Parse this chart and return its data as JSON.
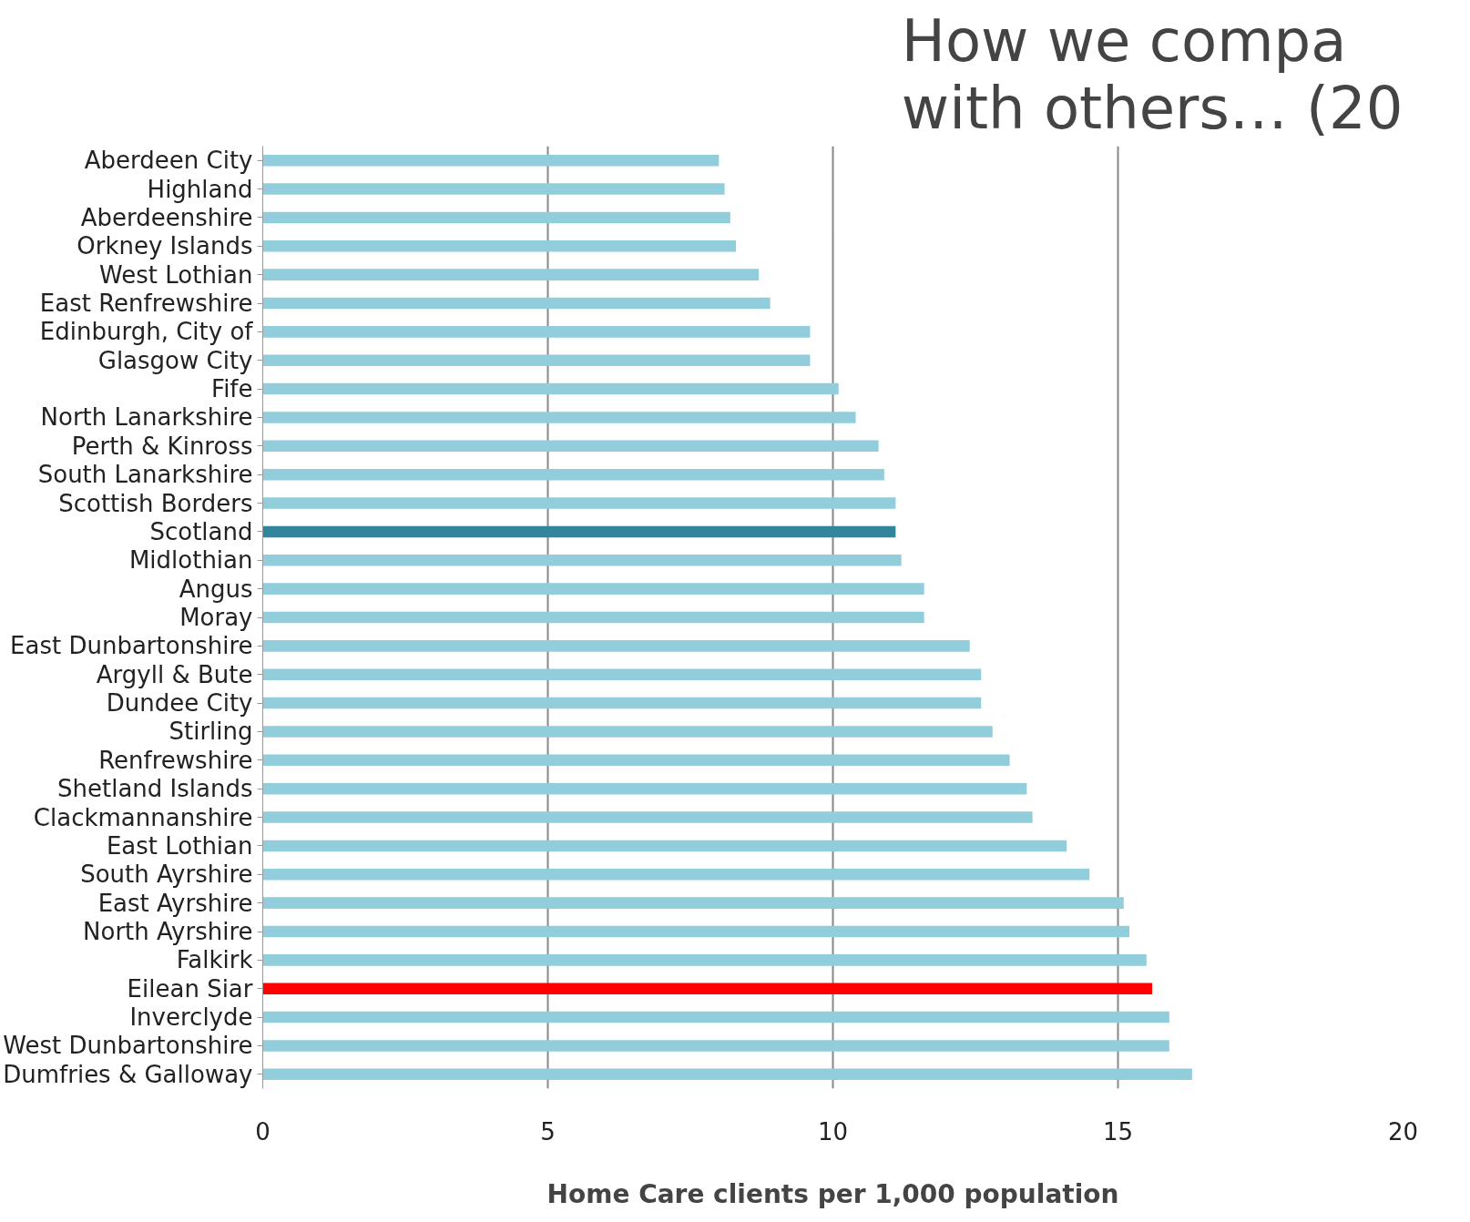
{
  "chart_data": {
    "type": "bar",
    "orientation": "horizontal",
    "title": "How we compa\nwith others… (20",
    "xlabel": "Home Care clients per 1,000 population",
    "categories": [
      "Aberdeen City",
      "Highland",
      "Aberdeenshire",
      "Orkney Islands",
      "West Lothian",
      "East Renfrewshire",
      "Edinburgh, City of",
      "Glasgow City",
      "Fife",
      "North Lanarkshire",
      "Perth & Kinross",
      "South Lanarkshire",
      "Scottish Borders",
      "Scotland",
      "Midlothian",
      "Angus",
      "Moray",
      "East Dunbartonshire",
      "Argyll & Bute",
      "Dundee City",
      "Stirling",
      "Renfrewshire",
      "Shetland Islands",
      "Clackmannanshire",
      "East Lothian",
      "South Ayrshire",
      "East Ayrshire",
      "North Ayrshire",
      "Falkirk",
      "Eilean Siar",
      "Inverclyde",
      "West Dunbartonshire",
      "Dumfries & Galloway"
    ],
    "values": [
      8.0,
      8.1,
      8.2,
      8.3,
      8.7,
      8.9,
      9.6,
      9.6,
      10.1,
      10.4,
      10.8,
      10.9,
      11.1,
      11.1,
      11.2,
      11.6,
      11.6,
      12.4,
      12.6,
      12.6,
      12.8,
      13.1,
      13.4,
      13.5,
      14.1,
      14.5,
      15.1,
      15.2,
      15.5,
      15.6,
      15.9,
      15.9,
      16.3
    ],
    "colors": [
      "#92cddc",
      "#92cddc",
      "#92cddc",
      "#92cddc",
      "#92cddc",
      "#92cddc",
      "#92cddc",
      "#92cddc",
      "#92cddc",
      "#92cddc",
      "#92cddc",
      "#92cddc",
      "#92cddc",
      "#31859c",
      "#92cddc",
      "#92cddc",
      "#92cddc",
      "#92cddc",
      "#92cddc",
      "#92cddc",
      "#92cddc",
      "#92cddc",
      "#92cddc",
      "#92cddc",
      "#92cddc",
      "#92cddc",
      "#92cddc",
      "#92cddc",
      "#92cddc",
      "#ff0000",
      "#92cddc",
      "#92cddc",
      "#92cddc"
    ],
    "xlim": [
      0,
      20
    ],
    "xticks": [
      0,
      5,
      10,
      15,
      20
    ],
    "grid": "x"
  }
}
